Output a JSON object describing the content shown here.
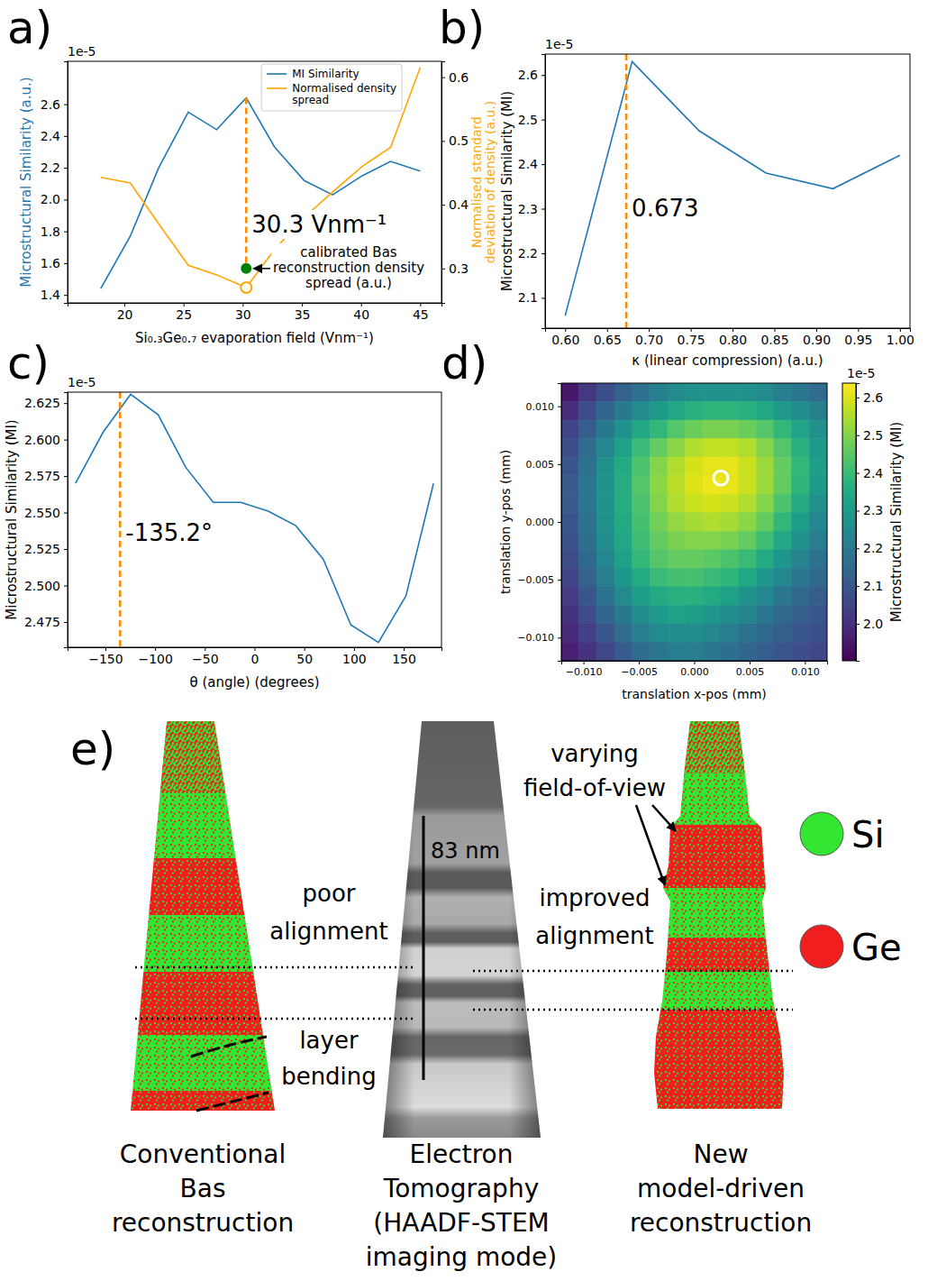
{
  "chart_data": [
    {
      "panel": "a)",
      "type": "line",
      "xlabel": "Si₀.₃Ge₀.₇ evaporation field (Vnm⁻¹)",
      "ylabel": "Microstructural Similarity (a.u.)",
      "y2label": "Normalised standard deviation of density (a.u.)",
      "offset_label": "1e-5",
      "x": [
        18,
        20.5,
        22.9,
        25.4,
        27.8,
        30.3,
        32.7,
        35.2,
        37.6,
        40.1,
        42.5,
        45
      ],
      "xlim": [
        15.2,
        46.8
      ],
      "xticks": [
        20,
        25,
        30,
        35,
        40,
        45
      ],
      "ylim": [
        1.35,
        2.87
      ],
      "yticks": [
        1.4,
        1.6,
        1.8,
        {
          "value": 2,
          "label": "2.0"
        },
        2.2,
        2.4,
        2.6
      ],
      "y2lim": [
        0.246,
        0.625
      ],
      "y2ticks": [
        0.3,
        0.4,
        0.5,
        0.6
      ],
      "legend": "upper right",
      "series": [
        {
          "name": "MI Similarity",
          "color": "#1f77b4",
          "values": [
            1.44,
            1.77,
            2.2,
            2.55,
            2.44,
            2.64,
            2.33,
            2.12,
            2.03,
            2.15,
            2.24,
            2.18
          ]
        },
        {
          "name": "Normalised density spread",
          "color": "#ffa500",
          "axis": "y2",
          "values": [
            0.443,
            0.434,
            0.37,
            0.305,
            0.29,
            0.27,
            0.33,
            0.38,
            0.42,
            0.46,
            0.49,
            0.615
          ]
        }
      ],
      "annotations": [
        {
          "text": "30.3 Vnm⁻¹",
          "x": 30.3
        },
        {
          "text": "calibrated Bas reconstruction density spread (a.u.)",
          "x": 30.3,
          "y": 0.3,
          "axis": "y2"
        }
      ]
    },
    {
      "panel": "b)",
      "type": "line",
      "xlabel": "κ (linear compression) (a.u.)",
      "ylabel": "Microstructural Similarity (MI)",
      "offset_label": "1e-5",
      "x": [
        0.6,
        0.68,
        0.76,
        0.84,
        0.92,
        1.0
      ],
      "xlim": [
        0.576,
        1.012
      ],
      "xticks": [
        {
          "value": 0.6,
          "label": "0.60"
        },
        0.65,
        {
          "value": 0.7,
          "label": "0.70"
        },
        0.75,
        {
          "value": 0.8,
          "label": "0.80"
        },
        0.85,
        {
          "value": 0.9,
          "label": "0.90"
        },
        0.95,
        {
          "value": 1,
          "label": "1.00"
        }
      ],
      "ylim": [
        2.032,
        2.647
      ],
      "yticks": [
        2.1,
        2.2,
        2.3,
        2.4,
        2.5,
        2.6
      ],
      "series": [
        {
          "color": "#1f77b4",
          "values": [
            2.06,
            2.63,
            2.475,
            2.38,
            2.345,
            2.42
          ]
        }
      ],
      "annotations": [
        {
          "text": "0.673",
          "x": 0.673
        }
      ]
    },
    {
      "panel": "c)",
      "type": "line",
      "xlabel": "θ (angle) (degrees)",
      "ylabel": "Microstructural Similarity (MI)",
      "offset_label": "1e-5",
      "x": [
        -180,
        -152.3,
        -124.6,
        -96.9,
        -69.2,
        -41.5,
        -13.8,
        13.8,
        41.5,
        69.2,
        96.9,
        124.6,
        152.3,
        180
      ],
      "xlim": [
        -188,
        188
      ],
      "xticks": [
        {
          "value": -150,
          "label": "−150"
        },
        {
          "value": -100,
          "label": "−100"
        },
        {
          "value": -50,
          "label": "−50"
        },
        0,
        50,
        100,
        150
      ],
      "ylim": [
        2.4577,
        2.6325
      ],
      "yticks": [
        2.475,
        {
          "value": 2.5,
          "label": "2.500"
        },
        2.525,
        {
          "value": 2.55,
          "label": "2.550"
        },
        2.575,
        {
          "value": 2.6,
          "label": "2.600"
        },
        2.625
      ],
      "series": [
        {
          "color": "#1f77b4",
          "values": [
            2.57,
            2.605,
            2.631,
            2.617,
            2.581,
            2.557,
            2.557,
            2.551,
            2.541,
            2.518,
            2.473,
            2.461,
            2.493,
            2.57
          ]
        }
      ],
      "annotations": [
        {
          "text": "-135.2°",
          "x": -135.2
        }
      ]
    },
    {
      "panel": "d)",
      "type": "heatmap",
      "xlabel": "translation x-pos (mm)",
      "ylabel": "translation y-pos (mm)",
      "x": [
        -0.0112,
        -0.0096,
        -0.008,
        -0.0064,
        -0.0048,
        -0.0032,
        -0.0016,
        0,
        0.0016,
        0.0032,
        0.0048,
        0.0064,
        0.008,
        0.0096,
        0.0112
      ],
      "y": [
        0.0112,
        0.0096,
        0.008,
        0.0064,
        0.0048,
        0.0032,
        0.0016,
        0,
        -0.0016,
        -0.0032,
        -0.0048,
        -0.0064,
        -0.008,
        -0.0096,
        -0.0112
      ],
      "cells": [
        [
          1.95,
          2.02,
          2.08,
          2.13,
          2.18,
          2.22,
          2.25,
          2.27,
          2.28,
          2.28,
          2.27,
          2.25,
          2.22,
          2.19,
          2.16
        ],
        [
          2.0,
          2.07,
          2.14,
          2.2,
          2.25,
          2.3,
          2.34,
          2.37,
          2.38,
          2.38,
          2.37,
          2.34,
          2.3,
          2.26,
          2.22
        ],
        [
          2.05,
          2.12,
          2.2,
          2.27,
          2.34,
          2.39,
          2.44,
          2.47,
          2.49,
          2.49,
          2.47,
          2.44,
          2.39,
          2.33,
          2.27
        ],
        [
          2.08,
          2.16,
          2.24,
          2.32,
          2.4,
          2.46,
          2.51,
          2.55,
          2.57,
          2.57,
          2.55,
          2.5,
          2.44,
          2.37,
          2.3
        ],
        [
          2.1,
          2.18,
          2.27,
          2.35,
          2.43,
          2.5,
          2.55,
          2.59,
          2.61,
          2.61,
          2.58,
          2.53,
          2.46,
          2.39,
          2.31
        ],
        [
          2.11,
          2.19,
          2.28,
          2.36,
          2.44,
          2.51,
          2.56,
          2.6,
          2.62,
          2.61,
          2.58,
          2.53,
          2.46,
          2.38,
          2.3
        ],
        [
          2.11,
          2.19,
          2.28,
          2.36,
          2.43,
          2.5,
          2.55,
          2.58,
          2.59,
          2.58,
          2.55,
          2.5,
          2.43,
          2.35,
          2.27
        ],
        [
          2.1,
          2.18,
          2.27,
          2.35,
          2.42,
          2.48,
          2.52,
          2.54,
          2.55,
          2.54,
          2.51,
          2.46,
          2.39,
          2.31,
          2.24
        ],
        [
          2.09,
          2.17,
          2.26,
          2.34,
          2.41,
          2.46,
          2.49,
          2.5,
          2.5,
          2.49,
          2.46,
          2.41,
          2.34,
          2.27,
          2.21
        ],
        [
          2.07,
          2.15,
          2.24,
          2.32,
          2.39,
          2.44,
          2.46,
          2.46,
          2.45,
          2.43,
          2.4,
          2.35,
          2.29,
          2.23,
          2.18
        ],
        [
          2.05,
          2.13,
          2.21,
          2.29,
          2.35,
          2.4,
          2.42,
          2.42,
          2.4,
          2.38,
          2.34,
          2.29,
          2.24,
          2.19,
          2.15
        ],
        [
          2.03,
          2.1,
          2.18,
          2.25,
          2.31,
          2.35,
          2.37,
          2.37,
          2.35,
          2.32,
          2.28,
          2.24,
          2.19,
          2.15,
          2.12
        ],
        [
          2.01,
          2.07,
          2.14,
          2.2,
          2.26,
          2.3,
          2.32,
          2.31,
          2.29,
          2.26,
          2.23,
          2.19,
          2.15,
          2.12,
          2.1
        ],
        [
          1.99,
          2.04,
          2.1,
          2.16,
          2.21,
          2.25,
          2.26,
          2.26,
          2.24,
          2.21,
          2.18,
          2.15,
          2.12,
          2.1,
          2.08
        ],
        [
          1.97,
          2.01,
          2.06,
          2.11,
          2.16,
          2.19,
          2.21,
          2.21,
          2.19,
          2.17,
          2.14,
          2.12,
          2.1,
          2.08,
          2.06
        ]
      ],
      "xlim": [
        -0.012,
        0.012
      ],
      "ylim": [
        -0.012,
        0.012
      ],
      "xticks": [
        {
          "value": -0.01,
          "label": "−0.010"
        },
        {
          "value": -0.005,
          "label": "−0.005"
        },
        {
          "value": 0,
          "label": "0.000"
        },
        {
          "value": 0.005,
          "label": "0.005"
        },
        {
          "value": 0.01,
          "label": "0.010"
        }
      ],
      "yticks": [
        {
          "value": -0.01,
          "label": "−0.010"
        },
        {
          "value": -0.005,
          "label": "−0.005"
        },
        {
          "value": 0,
          "label": "0.000"
        },
        {
          "value": 0.005,
          "label": "0.005"
        },
        {
          "value": 0.01,
          "label": "0.010"
        }
      ],
      "colorbar": {
        "label": "Microstructural Similarity (MI)",
        "offset_label": "1e-5",
        "lim": [
          1.902,
          2.638
        ],
        "ticks": [
          {
            "value": 2,
            "label": "2.0"
          },
          2.1,
          2.2,
          2.3,
          2.4,
          2.5,
          2.6
        ]
      },
      "optimum": {
        "x": 0.0024,
        "y": 0.0038
      }
    }
  ],
  "panel_e": {
    "panel": "e)",
    "captions": [
      "Conventional Bas reconstruction",
      "Electron Tomography (HAADF-STEM imaging mode)",
      "New model-driven reconstruction"
    ],
    "scale_bar_label": "83 nm",
    "poor_alignment": "poor alignment",
    "layer_bending": "layer bending",
    "field_of_view": "varying field-of-view",
    "improved_alignment": "improved alignment",
    "species": [
      {
        "name": "Si",
        "color": "#32e632"
      },
      {
        "name": "Ge",
        "color": "#f01e1e"
      }
    ]
  }
}
